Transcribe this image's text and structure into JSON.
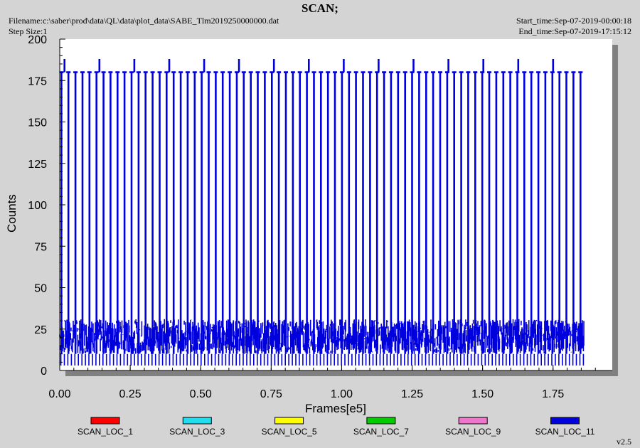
{
  "header": {
    "title": "SCAN;",
    "filename": "Filename:c:\\saber\\prod\\data\\QL\\data\\plot_data\\SABE_Tlm2019250000000.dat",
    "step_size": "Step Size:1",
    "start_time": "Start_time:Sep-07-2019-00:00:18",
    "end_time": "End_time:Sep-07-2019-17:15:12"
  },
  "version": "v2.5",
  "chart_data": {
    "type": "line",
    "title": "SCAN;",
    "xlabel": "Frames[e5]",
    "ylabel": "Counts",
    "xlim": [
      0.0,
      1.96
    ],
    "ylim": [
      0,
      200
    ],
    "x_ticks": [
      "0.00",
      "0.25",
      "0.50",
      "0.75",
      "1.00",
      "1.25",
      "1.50",
      "1.75"
    ],
    "y_ticks": [
      "0",
      "25",
      "50",
      "75",
      "100",
      "125",
      "150",
      "175",
      "200"
    ],
    "grid": false,
    "legend_position": "bottom",
    "series": [
      {
        "name": "SCAN_LOC_1",
        "color": "#ff0000",
        "scan_count_range": [
          null,
          null
        ],
        "x_range": [
          null,
          null
        ]
      },
      {
        "name": "SCAN_LOC_3",
        "color": "#22ddee",
        "scan_count_range": [
          null,
          null
        ],
        "x_range": [
          null,
          null
        ]
      },
      {
        "name": "SCAN_LOC_5",
        "color": "#ffff00",
        "scan_count_range": [
          null,
          null
        ],
        "x_range": [
          null,
          null
        ]
      },
      {
        "name": "SCAN_LOC_7",
        "color": "#00cc00",
        "scan_count_range": [
          null,
          null
        ],
        "x_range": [
          null,
          null
        ]
      },
      {
        "name": "SCAN_LOC_9",
        "color": "#ee77cc",
        "scan_count_range": [
          null,
          null
        ],
        "x_range": [
          null,
          null
        ]
      },
      {
        "name": "SCAN_LOC_11",
        "color": "#0000dd",
        "scan_count_range": [
          3,
          188
        ],
        "x_range": [
          0.0,
          1.86
        ]
      }
    ],
    "pattern": {
      "spike_period": 0.02488,
      "spike_peak": 180,
      "tall_spike_peak": 188,
      "tall_spike_period": 0.1238,
      "baseline_low": 10,
      "baseline_high": 31,
      "dip_min": 3
    }
  }
}
